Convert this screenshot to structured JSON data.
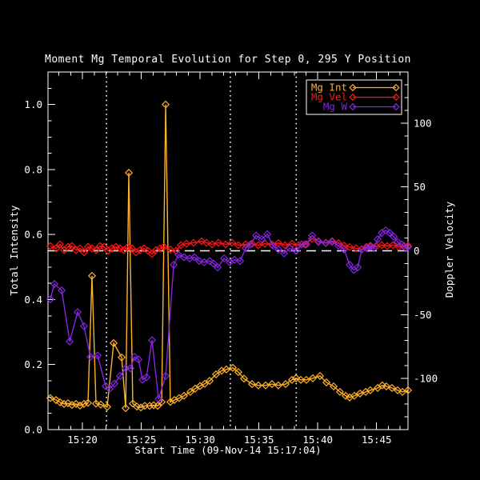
{
  "window": {
    "background": "#000000",
    "foreground": "#ffffff"
  },
  "chart_data": {
    "type": "line",
    "title": "Moment Mg Temporal Evolution for Step 0, 295 Y Position",
    "xlabel": "Start Time (09-Nov-14 15:17:04)",
    "ylabel_left": "Total Intensity",
    "ylabel_right": "Doppler Velocity",
    "x_unit": "minutes after 15:17:04",
    "xlim": [
      0,
      30.6
    ],
    "ylim_left": [
      0,
      1.1
    ],
    "ylim_right": [
      -140,
      140
    ],
    "grid": false,
    "x_ticks_major": [
      {
        "t": 2.93,
        "label": "15:20"
      },
      {
        "t": 7.93,
        "label": "15:25"
      },
      {
        "t": 12.93,
        "label": "15:30"
      },
      {
        "t": 17.93,
        "label": "15:35"
      },
      {
        "t": 22.93,
        "label": "15:40"
      },
      {
        "t": 27.93,
        "label": "15:45"
      }
    ],
    "x_ticks_minor": {
      "start": 0.93,
      "step": 1,
      "count": 30
    },
    "y_left_ticks_major": [
      {
        "v": 0.0,
        "label": "0.0"
      },
      {
        "v": 0.2,
        "label": "0.2"
      },
      {
        "v": 0.4,
        "label": "0.4"
      },
      {
        "v": 0.6,
        "label": "0.6"
      },
      {
        "v": 0.8,
        "label": "0.8"
      },
      {
        "v": 1.0,
        "label": "1.0"
      }
    ],
    "y_left_ticks_minor": {
      "start": 0.05,
      "step": 0.05,
      "count": 21
    },
    "y_right_ticks_major": [
      {
        "v": -100,
        "label": "-100"
      },
      {
        "v": -50,
        "label": "-50"
      },
      {
        "v": 0,
        "label": "0"
      },
      {
        "v": 50,
        "label": "50"
      },
      {
        "v": 100,
        "label": "100"
      }
    ],
    "y_right_ticks_minor": {
      "start": -130,
      "step": 10,
      "count": 27
    },
    "reference_lines": {
      "horizontal_dashed_velocity": 0,
      "vertical_dotted_t": [
        4.97,
        15.5,
        21.1
      ]
    },
    "legend": {
      "position": "top-right",
      "entries": [
        {
          "label": "Mg Int",
          "color": "#ffb028",
          "axis": "left"
        },
        {
          "label": "Mg Vel",
          "color": "#ff1515",
          "axis": "right"
        },
        {
          "label": "Mg W",
          "color": "#8427e0",
          "axis": "right"
        }
      ]
    },
    "series": [
      {
        "name": "Mg Int",
        "axis": "left",
        "color": "#ffb028",
        "marker": "diamond",
        "t": [
          0.2,
          0.68,
          1.02,
          1.36,
          1.7,
          2.04,
          2.38,
          2.72,
          3.06,
          3.4,
          3.74,
          4.08,
          4.49,
          5.03,
          5.58,
          6.26,
          6.6,
          6.87,
          7.21,
          7.55,
          7.89,
          8.23,
          8.64,
          8.98,
          9.32,
          9.66,
          10.0,
          10.4,
          10.74,
          11.15,
          11.56,
          12.1,
          12.51,
          12.92,
          13.33,
          13.74,
          14.28,
          14.76,
          15.16,
          15.71,
          16.18,
          16.66,
          17.34,
          17.88,
          18.5,
          19.04,
          19.58,
          20.2,
          20.74,
          21.08,
          21.49,
          21.96,
          22.51,
          23.12,
          23.67,
          24.28,
          24.82,
          25.3,
          25.64,
          26.04,
          26.52,
          27.0,
          27.4,
          28.02,
          28.42,
          28.76,
          29.24,
          29.72,
          30.13,
          30.6
        ],
        "values": [
          0.097,
          0.091,
          0.084,
          0.079,
          0.081,
          0.076,
          0.079,
          0.074,
          0.079,
          0.082,
          0.473,
          0.08,
          0.077,
          0.07,
          0.266,
          0.222,
          0.066,
          0.79,
          0.08,
          0.071,
          0.068,
          0.073,
          0.073,
          0.075,
          0.073,
          0.085,
          1.0,
          0.085,
          0.091,
          0.097,
          0.104,
          0.116,
          0.126,
          0.134,
          0.141,
          0.15,
          0.17,
          0.181,
          0.185,
          0.19,
          0.177,
          0.157,
          0.14,
          0.136,
          0.136,
          0.14,
          0.136,
          0.14,
          0.153,
          0.158,
          0.153,
          0.153,
          0.158,
          0.165,
          0.145,
          0.133,
          0.116,
          0.104,
          0.099,
          0.104,
          0.111,
          0.116,
          0.121,
          0.128,
          0.136,
          0.133,
          0.128,
          0.121,
          0.116,
          0.121
        ]
      },
      {
        "name": "Mg Vel",
        "axis": "right",
        "color": "#ff1515",
        "marker": "diamond",
        "t": [
          0.2,
          0.68,
          1.02,
          1.36,
          1.7,
          2.04,
          2.38,
          2.72,
          3.06,
          3.4,
          3.74,
          4.08,
          4.42,
          4.76,
          5.1,
          5.44,
          5.78,
          6.12,
          6.46,
          6.8,
          7.14,
          7.48,
          7.82,
          8.16,
          8.5,
          8.84,
          9.18,
          9.52,
          9.86,
          10.4,
          10.88,
          11.29,
          11.77,
          12.38,
          13.06,
          13.47,
          13.95,
          14.49,
          15.1,
          15.65,
          16.18,
          16.8,
          17.34,
          17.88,
          18.44,
          19.04,
          19.58,
          20.14,
          20.74,
          21.29,
          21.84,
          22.45,
          22.99,
          23.61,
          24.15,
          24.69,
          25.17,
          25.64,
          26.19,
          26.67,
          27.07,
          27.4,
          27.89,
          28.37,
          28.84,
          29.32,
          29.8,
          30.27,
          30.6
        ],
        "values": [
          3.7,
          1.9,
          5.0,
          0.6,
          3.1,
          3.7,
          0.6,
          1.9,
          -1.2,
          3.1,
          1.9,
          0.6,
          3.7,
          3.1,
          0.0,
          1.9,
          3.1,
          1.9,
          0.6,
          3.1,
          1.9,
          -1.2,
          0.6,
          1.9,
          0.0,
          -2.5,
          0.6,
          1.9,
          3.1,
          1.0,
          0.0,
          4.4,
          5.5,
          6.3,
          7.5,
          6.3,
          5.0,
          6.3,
          5.0,
          6.3,
          4.4,
          5.0,
          5.5,
          4.4,
          5.5,
          5.0,
          6.0,
          4.4,
          5.5,
          4.4,
          5.0,
          9.4,
          7.5,
          6.3,
          7.5,
          6.0,
          4.0,
          3.0,
          2.0,
          1.3,
          3.0,
          4.0,
          3.5,
          4.4,
          3.7,
          4.4,
          3.1,
          3.7,
          4.0
        ]
      },
      {
        "name": "Mg W",
        "axis": "right",
        "color": "#8427e0",
        "marker": "diamond",
        "t": [
          0.2,
          0.54,
          1.16,
          1.84,
          2.52,
          3.06,
          3.61,
          4.22,
          4.9,
          5.24,
          5.65,
          6.12,
          6.6,
          7.01,
          7.35,
          7.69,
          8.03,
          8.37,
          8.84,
          9.39,
          10.0,
          10.68,
          11.09,
          11.56,
          12.04,
          12.45,
          12.86,
          13.27,
          13.74,
          14.08,
          14.42,
          14.97,
          15.44,
          15.85,
          16.33,
          16.8,
          17.21,
          17.69,
          18.16,
          18.64,
          19.12,
          19.58,
          20.07,
          20.54,
          21.08,
          21.56,
          21.96,
          22.45,
          22.99,
          23.61,
          24.15,
          24.69,
          25.17,
          25.64,
          25.99,
          26.33,
          26.67,
          27.07,
          27.4,
          27.69,
          28.02,
          28.37,
          28.71,
          29.05,
          29.39,
          29.72,
          30.07,
          30.41,
          30.6
        ],
        "values": [
          -38,
          -26,
          -31,
          -71,
          -48,
          -59,
          -83,
          -82,
          -106,
          -108,
          -104,
          -98,
          -92,
          -92,
          -83,
          -85,
          -101,
          -99,
          -70,
          -116,
          -98,
          -11,
          -3,
          -5,
          -6,
          -5,
          -8,
          -9,
          -8,
          -10,
          -13,
          -6,
          -9,
          -7,
          -8,
          2,
          5,
          12,
          9,
          13,
          4,
          1,
          -2,
          2,
          0,
          5,
          5,
          12,
          7,
          6,
          7,
          4,
          1,
          -11,
          -15,
          -13,
          1,
          2,
          3,
          2,
          9,
          14,
          16,
          14,
          11,
          7,
          5,
          2,
          3
        ]
      }
    ]
  }
}
